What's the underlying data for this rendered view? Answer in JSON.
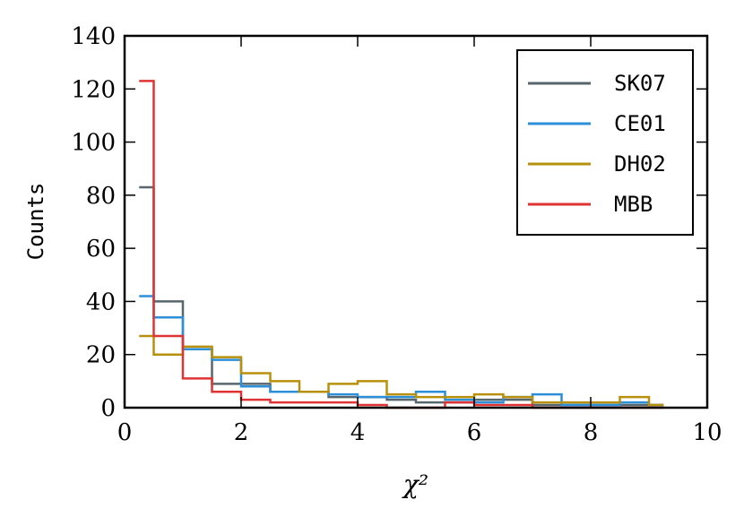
{
  "chart_data": {
    "type": "histogram",
    "xlabel": "χ²",
    "ylabel": "Counts",
    "xlim": [
      0,
      10
    ],
    "ylim": [
      0,
      140
    ],
    "xticks": [
      0,
      2,
      4,
      6,
      8,
      10
    ],
    "yticks": [
      0,
      20,
      40,
      60,
      80,
      100,
      120,
      140
    ],
    "grid": false,
    "legend_position": "top-right",
    "bin_edges": [
      0.25,
      0.5,
      1.0,
      1.5,
      2.0,
      2.5,
      3.0,
      3.5,
      4.0,
      4.5,
      5.0,
      5.5,
      6.0,
      6.5,
      7.0,
      7.5,
      8.0,
      8.5,
      9.0,
      9.25
    ],
    "series": [
      {
        "name": "SK07",
        "color": "#58666e",
        "values": [
          83,
          40,
          22,
          9,
          9,
          6,
          6,
          4,
          4,
          3,
          2,
          2,
          3,
          3,
          1,
          1,
          1,
          1,
          1
        ]
      },
      {
        "name": "CE01",
        "color": "#2c8fd8",
        "values": [
          42,
          34,
          22,
          18,
          8,
          6,
          6,
          5,
          4,
          4,
          6,
          3,
          2,
          4,
          5,
          1,
          1,
          2,
          1
        ]
      },
      {
        "name": "DH02",
        "color": "#b8900c",
        "values": [
          27,
          20,
          23,
          19,
          13,
          10,
          6,
          9,
          10,
          5,
          4,
          4,
          5,
          4,
          2,
          2,
          2,
          4,
          1
        ]
      },
      {
        "name": "MBB",
        "color": "#e03434",
        "values": [
          123,
          27,
          11,
          6,
          3,
          2,
          2,
          2,
          1,
          0,
          0,
          2,
          1,
          1,
          0,
          0,
          0,
          0,
          0
        ]
      }
    ]
  }
}
